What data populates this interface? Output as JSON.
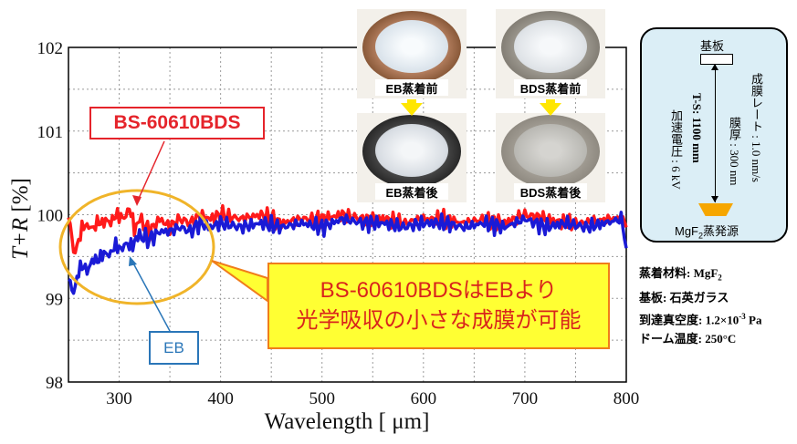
{
  "chart_data": {
    "type": "line",
    "xlabel_main": "Wavelength",
    "xlabel_unit": "[ μm]",
    "ylabel_main": "T+R",
    "ylabel_unit": "[%]",
    "xlim": [
      250,
      800
    ],
    "ylim": [
      98,
      102
    ],
    "xticks": [
      300,
      400,
      500,
      600,
      700,
      800
    ],
    "yticks": [
      98,
      99,
      100,
      101,
      102
    ],
    "grid": true,
    "series": [
      {
        "name": "BS-60610BDS",
        "color": "#ff1a1a",
        "x": [
          250,
          255,
          260,
          265,
          270,
          275,
          280,
          285,
          290,
          295,
          300,
          305,
          310,
          315,
          320,
          330,
          340,
          350,
          360,
          370,
          380,
          390,
          400,
          420,
          440,
          460,
          480,
          500,
          520,
          540,
          560,
          580,
          600,
          620,
          640,
          660,
          680,
          700,
          720,
          740,
          760,
          780,
          795,
          800
        ],
        "y": [
          100.0,
          99.55,
          99.7,
          99.85,
          99.9,
          99.8,
          99.95,
          99.9,
          99.9,
          100.0,
          99.95,
          100.0,
          100.05,
          99.85,
          99.95,
          99.8,
          99.95,
          99.85,
          99.95,
          99.9,
          100.0,
          99.95,
          100.0,
          99.95,
          100.0,
          99.9,
          99.95,
          99.95,
          100.0,
          99.95,
          99.95,
          99.9,
          99.95,
          99.95,
          99.9,
          99.95,
          99.9,
          100.0,
          99.95,
          99.9,
          99.9,
          99.95,
          99.95,
          99.85
        ]
      },
      {
        "name": "EB",
        "color": "#1a1ad6",
        "x": [
          250,
          255,
          260,
          265,
          270,
          275,
          280,
          285,
          290,
          295,
          300,
          305,
          310,
          315,
          320,
          330,
          340,
          350,
          360,
          370,
          380,
          390,
          400,
          420,
          440,
          460,
          480,
          500,
          520,
          540,
          560,
          580,
          600,
          620,
          640,
          660,
          680,
          700,
          720,
          740,
          760,
          780,
          795,
          800
        ],
        "y": [
          99.2,
          99.1,
          99.3,
          99.4,
          99.35,
          99.45,
          99.5,
          99.5,
          99.55,
          99.6,
          99.6,
          99.65,
          99.6,
          99.7,
          99.75,
          99.7,
          99.8,
          99.8,
          99.85,
          99.8,
          99.9,
          99.85,
          99.9,
          99.85,
          99.9,
          99.85,
          99.9,
          99.85,
          99.95,
          99.9,
          99.9,
          99.85,
          99.9,
          99.9,
          99.85,
          99.9,
          99.85,
          99.95,
          99.85,
          99.9,
          99.85,
          99.9,
          99.95,
          99.6
        ]
      }
    ]
  },
  "callouts": {
    "bds_label": "BS-60610BDS",
    "eb_label": "EB",
    "conclusion_line1": "BS-60610BDSはEBより",
    "conclusion_line2": "光学吸収の小さな成膜が可能"
  },
  "photos": {
    "eb_before": "EB蒸着前",
    "eb_after": "EB蒸着後",
    "bds_before": "BDS蒸着前",
    "bds_after": "BDS蒸着後"
  },
  "device": {
    "substrate_label": "基板",
    "voltage": "加速電圧 : 6 kV",
    "ts": "T-S: 1100 mm",
    "thickness": "膜厚 : 300 nm",
    "rate": "成膜レート : 1.0 nm/s",
    "source_label_main": "MgF",
    "source_label_sub": "2",
    "source_label_suffix": "蒸発源"
  },
  "conditions": {
    "material_prefix": "蒸着材料: MgF",
    "material_sub": "2",
    "substrate": "基板: 石英ガラス",
    "vacuum_prefix": "到達真空度: 1.2×10",
    "vacuum_exp": "-3",
    "vacuum_suffix": " Pa",
    "dome_temp": "ドーム温度: 250°C"
  },
  "colors": {
    "red": "#e5242b",
    "blue": "#2a76b8",
    "ellipse": "#f0b429",
    "highlight": "#ffff33"
  }
}
